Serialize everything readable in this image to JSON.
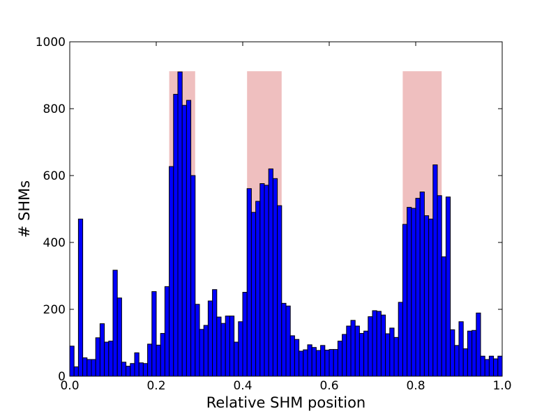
{
  "chart_data": {
    "type": "bar",
    "title": "",
    "xlabel": "Relative SHM position",
    "ylabel": "# SHMs",
    "xlim": [
      0.0,
      1.0
    ],
    "ylim": [
      0,
      1000
    ],
    "xticks": [
      "0.0",
      "0.2",
      "0.4",
      "0.6",
      "0.8",
      "1.0"
    ],
    "yticks": [
      "0",
      "200",
      "400",
      "600",
      "800",
      "1000"
    ],
    "bin_width": 0.01,
    "bar_color": "#0000ff",
    "highlight_color": "#efbfbf",
    "highlight_regions": [
      {
        "x_start": 0.23,
        "x_end": 0.29,
        "y_top": 912
      },
      {
        "x_start": 0.41,
        "x_end": 0.49,
        "y_top": 912
      },
      {
        "x_start": 0.77,
        "x_end": 0.86,
        "y_top": 912
      }
    ],
    "values": [
      90,
      28,
      470,
      55,
      50,
      50,
      115,
      157,
      102,
      105,
      317,
      234,
      42,
      30,
      38,
      70,
      40,
      38,
      96,
      253,
      93,
      128,
      268,
      627,
      843,
      910,
      810,
      825,
      600,
      215,
      140,
      152,
      225,
      259,
      177,
      158,
      180,
      180,
      102,
      163,
      251,
      561,
      490,
      523,
      576,
      571,
      620,
      591,
      510,
      218,
      210,
      121,
      110,
      75,
      79,
      94,
      86,
      77,
      92,
      78,
      80,
      80,
      105,
      125,
      150,
      167,
      150,
      128,
      135,
      178,
      196,
      194,
      183,
      127,
      144,
      116,
      221,
      454,
      505,
      502,
      532,
      551,
      480,
      470,
      632,
      540,
      357,
      536,
      139,
      92,
      163,
      82,
      135,
      137,
      189,
      60,
      50,
      60,
      52,
      60
    ]
  }
}
